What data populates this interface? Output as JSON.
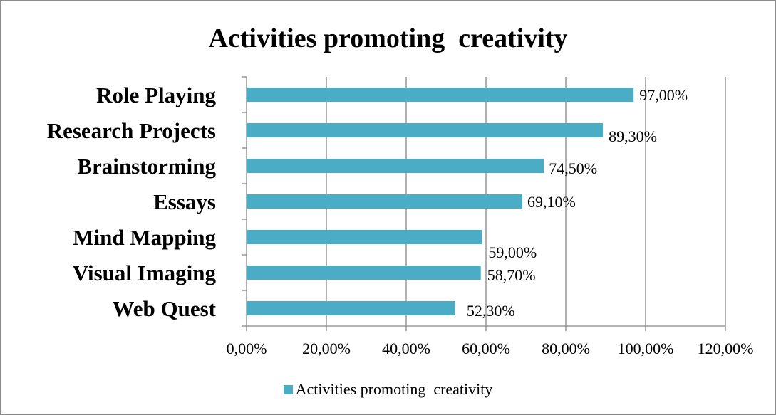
{
  "chart_data": {
    "type": "bar",
    "orientation": "horizontal",
    "title": "Activities promoting  creativity",
    "categories": [
      "Role Playing",
      "Research Projects",
      "Brainstorming",
      "Essays",
      "Mind Mapping",
      "Visual Imaging",
      "Web Quest"
    ],
    "series": [
      {
        "name": "Activities promoting  creativity",
        "values": [
          97.0,
          89.3,
          74.5,
          69.1,
          59.0,
          58.7,
          52.3
        ],
        "data_labels": [
          "97,00%",
          "89,30%",
          "74,50%",
          "69,10%",
          "59,00%",
          "58,70%",
          "52,30%"
        ]
      }
    ],
    "xlim": [
      0,
      120
    ],
    "xticks": [
      0,
      20,
      40,
      60,
      80,
      100,
      120
    ],
    "xtick_labels": [
      "0,00%",
      "20,00%",
      "40,00%",
      "60,00%",
      "80,00%",
      "100,00%",
      "120,00%"
    ],
    "xlabel": "",
    "ylabel": "",
    "grid": "vertical major gridlines",
    "legend_position": "bottom",
    "bar_color": "#4bacc6",
    "gridline_color": "#868686"
  }
}
